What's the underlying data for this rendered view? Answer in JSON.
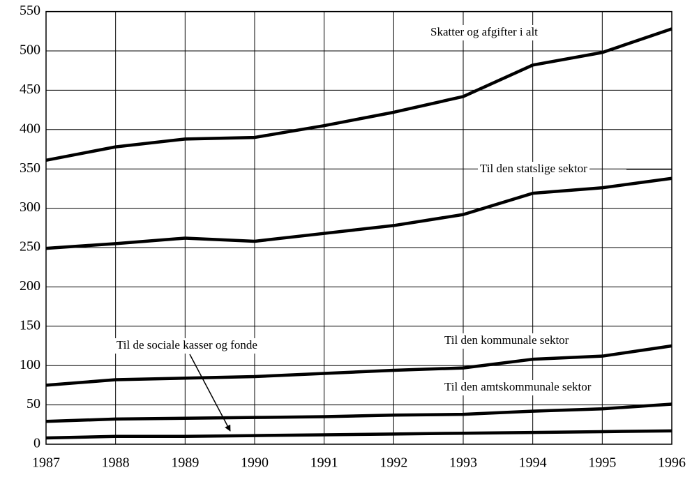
{
  "chart_data": {
    "type": "line",
    "x": [
      1987,
      1988,
      1989,
      1990,
      1991,
      1992,
      1993,
      1994,
      1995,
      1996
    ],
    "xlim": [
      1987,
      1996
    ],
    "xticks": [
      1987,
      1988,
      1989,
      1990,
      1991,
      1992,
      1993,
      1994,
      1995,
      1996
    ],
    "ylim": [
      0,
      550
    ],
    "yticks": [
      0,
      50,
      100,
      150,
      200,
      250,
      300,
      350,
      400,
      450,
      500,
      550
    ],
    "grid": true,
    "series": [
      {
        "name": "Skatter og afgifter i alt",
        "color": "#000000",
        "values": [
          361,
          378,
          388,
          390,
          405,
          422,
          442,
          482,
          498,
          528
        ]
      },
      {
        "name": "Til den statslige sektor",
        "color": "#000000",
        "values": [
          249,
          255,
          262,
          258,
          268,
          278,
          292,
          319,
          326,
          338
        ]
      },
      {
        "name": "Til den kommunale sektor",
        "color": "#000000",
        "values": [
          75,
          82,
          84,
          86,
          90,
          94,
          97,
          108,
          112,
          125
        ]
      },
      {
        "name": "Til den amtskommunale sektor",
        "color": "#000000",
        "values": [
          29,
          32,
          33,
          34,
          35,
          37,
          38,
          42,
          45,
          51
        ]
      },
      {
        "name": "Til de sociale kasser og fonde",
        "color": "#000000",
        "values": [
          8,
          10,
          10,
          11,
          12,
          13,
          14,
          15,
          16,
          17
        ]
      }
    ]
  }
}
